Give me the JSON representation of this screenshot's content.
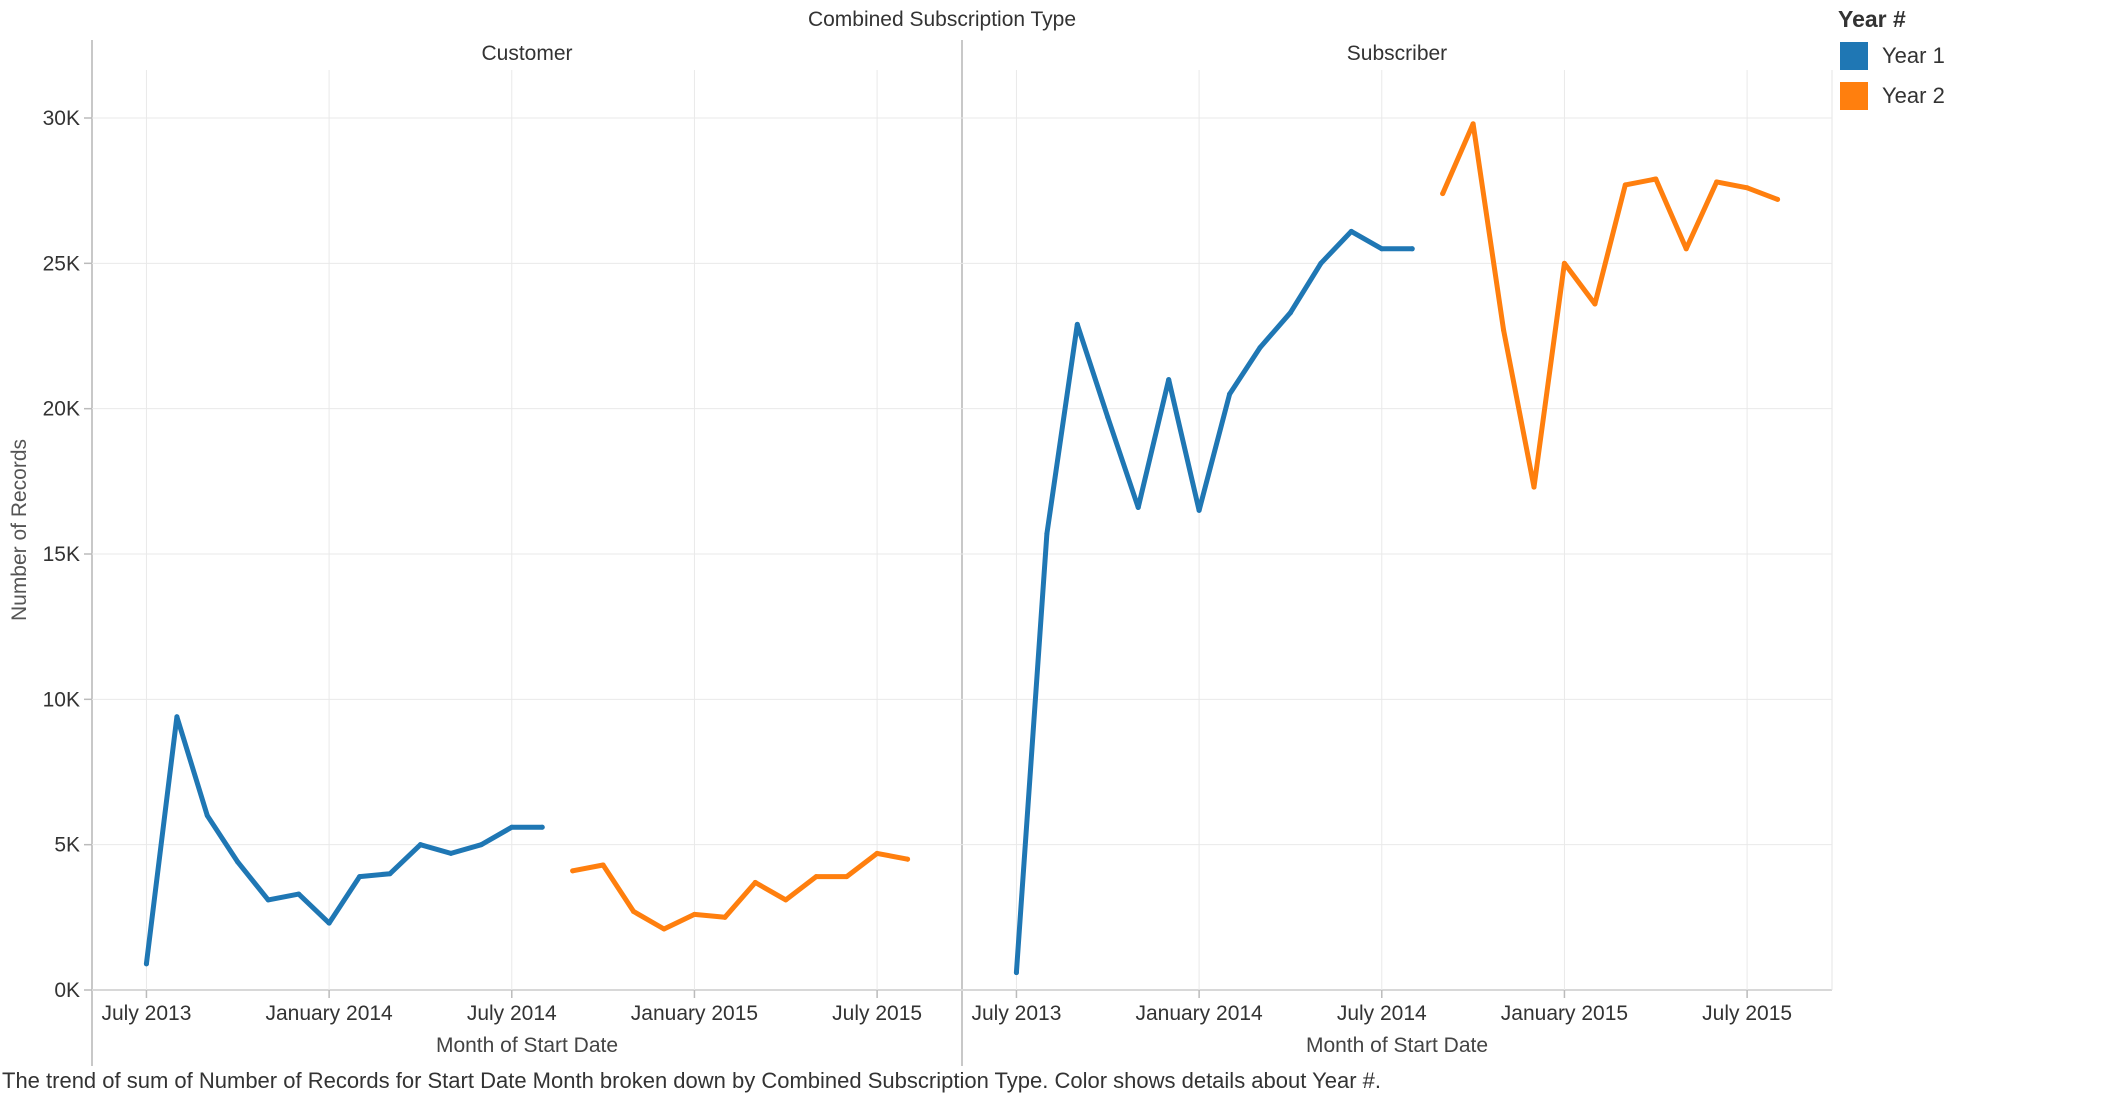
{
  "header_title": "Combined Subscription Type",
  "caption": "The trend of sum of Number of Records for Start Date Month broken down by Combined Subscription Type.  Color shows details about Year #.",
  "legend": {
    "title": "Year #",
    "items": [
      {
        "label": "Year 1",
        "color": "#1f77b4"
      },
      {
        "label": "Year 2",
        "color": "#ff7f0e"
      }
    ]
  },
  "chart_data": {
    "type": "line",
    "title": "Combined Subscription Type",
    "ylabel": "Number of Records",
    "ylim": [
      0,
      30000
    ],
    "y_ticks": [
      {
        "value": 0,
        "label": "0K"
      },
      {
        "value": 5000,
        "label": "5K"
      },
      {
        "value": 10000,
        "label": "10K"
      },
      {
        "value": 15000,
        "label": "15K"
      },
      {
        "value": 20000,
        "label": "20K"
      },
      {
        "value": 25000,
        "label": "25K"
      },
      {
        "value": 30000,
        "label": "30K"
      }
    ],
    "xlim": [
      "2013-06",
      "2015-09"
    ],
    "x_ticks": [
      {
        "value": "2013-07",
        "label": "July 2013"
      },
      {
        "value": "2014-01",
        "label": "January 2014"
      },
      {
        "value": "2014-07",
        "label": "July 2014"
      },
      {
        "value": "2015-01",
        "label": "January 2015"
      },
      {
        "value": "2015-07",
        "label": "July 2015"
      }
    ],
    "grid": true,
    "legend_position": "top-right",
    "panels": [
      {
        "name": "Customer",
        "xlabel": "Month of Start Date",
        "series": [
          {
            "name": "Year 1",
            "color": "#1f77b4",
            "x": [
              "2013-07",
              "2013-08",
              "2013-09",
              "2013-10",
              "2013-11",
              "2013-12",
              "2014-01",
              "2014-02",
              "2014-03",
              "2014-04",
              "2014-05",
              "2014-06",
              "2014-07",
              "2014-08"
            ],
            "values": [
              900,
              9400,
              6000,
              4400,
              3100,
              3300,
              2300,
              3900,
              4000,
              5000,
              4700,
              5000,
              5600,
              5600
            ]
          },
          {
            "name": "Year 2",
            "color": "#ff7f0e",
            "x": [
              "2014-09",
              "2014-10",
              "2014-11",
              "2014-12",
              "2015-01",
              "2015-02",
              "2015-03",
              "2015-04",
              "2015-05",
              "2015-06",
              "2015-07",
              "2015-08"
            ],
            "values": [
              4100,
              4300,
              2700,
              2100,
              2600,
              2500,
              3700,
              3100,
              3900,
              3900,
              4700,
              4500
            ]
          }
        ]
      },
      {
        "name": "Subscriber",
        "xlabel": "Month of Start Date",
        "series": [
          {
            "name": "Year 1",
            "color": "#1f77b4",
            "x": [
              "2013-07",
              "2013-08",
              "2013-09",
              "2013-10",
              "2013-11",
              "2013-12",
              "2014-01",
              "2014-02",
              "2014-03",
              "2014-04",
              "2014-05",
              "2014-06",
              "2014-07",
              "2014-08"
            ],
            "values": [
              600,
              15700,
              22900,
              19700,
              16600,
              21000,
              16500,
              20500,
              22100,
              23300,
              25000,
              26100,
              25500,
              25500
            ]
          },
          {
            "name": "Year 2",
            "color": "#ff7f0e",
            "x": [
              "2014-09",
              "2014-10",
              "2014-11",
              "2014-12",
              "2015-01",
              "2015-02",
              "2015-03",
              "2015-04",
              "2015-05",
              "2015-06",
              "2015-07",
              "2015-08"
            ],
            "values": [
              27400,
              29800,
              22700,
              17300,
              25000,
              23600,
              27700,
              27900,
              25500,
              27800,
              27600,
              27200
            ]
          }
        ]
      }
    ]
  }
}
